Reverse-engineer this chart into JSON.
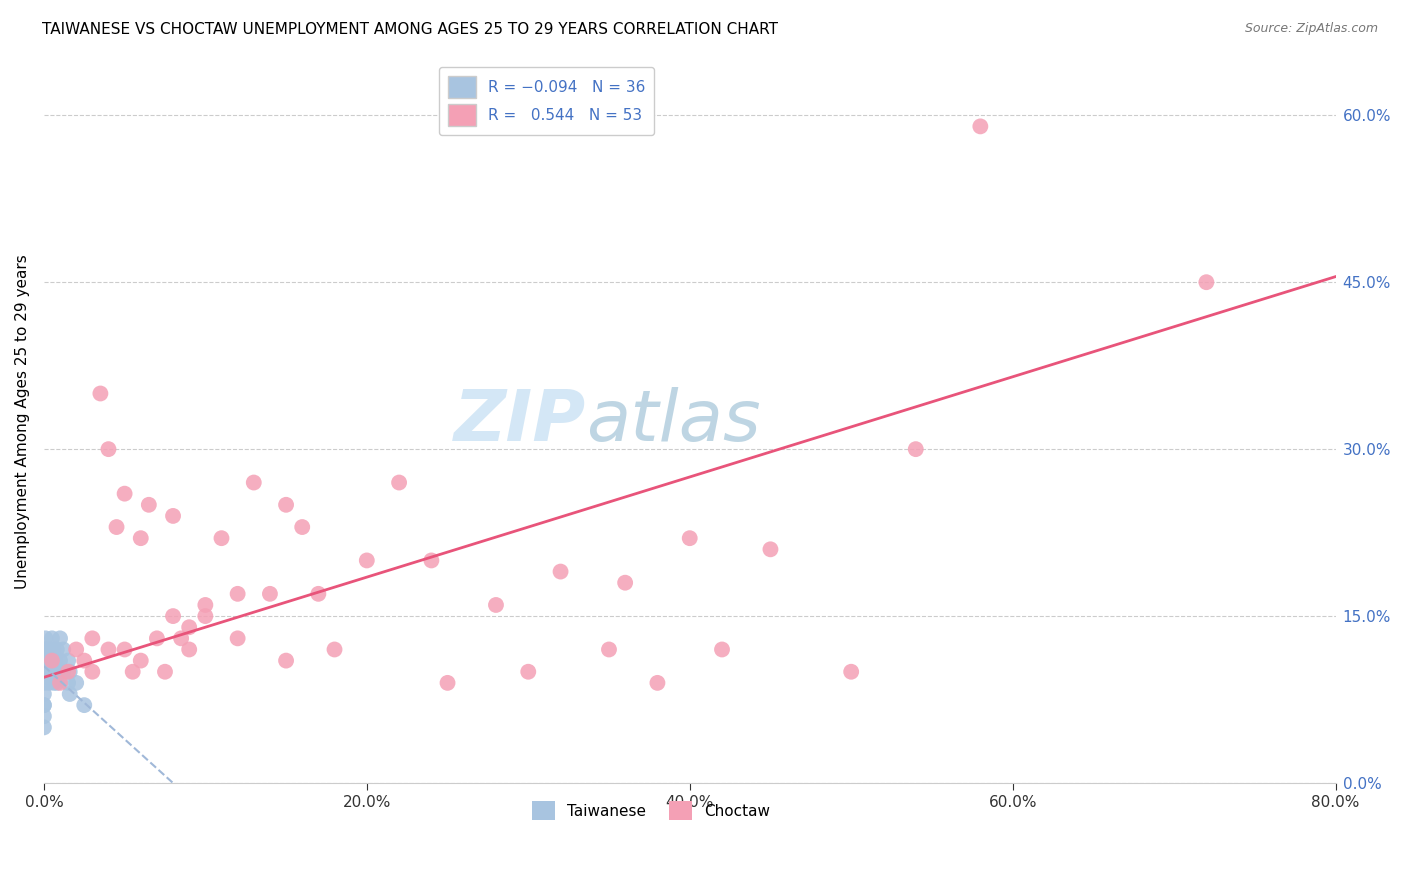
{
  "title": "TAIWANESE VS CHOCTAW UNEMPLOYMENT AMONG AGES 25 TO 29 YEARS CORRELATION CHART",
  "source": "Source: ZipAtlas.com",
  "ylabel": "Unemployment Among Ages 25 to 29 years",
  "watermark_zip": "ZIP",
  "watermark_atlas": "atlas",
  "xlim": [
    0,
    0.8
  ],
  "ylim": [
    0,
    0.65
  ],
  "x_ticks": [
    0.0,
    0.2,
    0.4,
    0.6,
    0.8
  ],
  "x_tick_labels": [
    "0.0%",
    "20.0%",
    "40.0%",
    "60.0%",
    "80.0%"
  ],
  "y_ticks_right": [
    0.0,
    0.15,
    0.3,
    0.45,
    0.6
  ],
  "y_tick_labels_right": [
    "0.0%",
    "15.0%",
    "30.0%",
    "45.0%",
    "60.0%"
  ],
  "taiwanese_color": "#a8c4e0",
  "choctaw_color": "#f4a0b5",
  "taiwanese_line_color": "#a0b8d8",
  "choctaw_line_color": "#e8547a",
  "legend_taiwanese_label": "Taiwanese",
  "legend_choctaw_label": "Choctaw",
  "taiwanese_R": -0.094,
  "taiwanese_N": 36,
  "choctaw_R": 0.544,
  "choctaw_N": 53,
  "grid_color": "#cccccc",
  "background_color": "#ffffff",
  "taiwanese_x": [
    0.0,
    0.0,
    0.0,
    0.0,
    0.0,
    0.0,
    0.0,
    0.0,
    0.001,
    0.001,
    0.002,
    0.002,
    0.003,
    0.003,
    0.003,
    0.004,
    0.004,
    0.005,
    0.005,
    0.006,
    0.006,
    0.007,
    0.007,
    0.008,
    0.008,
    0.01,
    0.01,
    0.01,
    0.012,
    0.012,
    0.015,
    0.015,
    0.016,
    0.016,
    0.02,
    0.025
  ],
  "taiwanese_y": [
    0.12,
    0.1,
    0.09,
    0.08,
    0.07,
    0.07,
    0.06,
    0.05,
    0.13,
    0.12,
    0.12,
    0.1,
    0.11,
    0.1,
    0.09,
    0.12,
    0.11,
    0.13,
    0.1,
    0.12,
    0.09,
    0.11,
    0.1,
    0.12,
    0.09,
    0.13,
    0.11,
    0.1,
    0.12,
    0.1,
    0.11,
    0.09,
    0.1,
    0.08,
    0.09,
    0.07
  ],
  "choctaw_x": [
    0.005,
    0.01,
    0.015,
    0.02,
    0.025,
    0.03,
    0.03,
    0.035,
    0.04,
    0.04,
    0.045,
    0.05,
    0.05,
    0.055,
    0.06,
    0.06,
    0.065,
    0.07,
    0.075,
    0.08,
    0.08,
    0.085,
    0.09,
    0.09,
    0.1,
    0.1,
    0.11,
    0.12,
    0.12,
    0.13,
    0.14,
    0.15,
    0.15,
    0.16,
    0.17,
    0.18,
    0.2,
    0.22,
    0.24,
    0.25,
    0.28,
    0.3,
    0.32,
    0.35,
    0.36,
    0.38,
    0.4,
    0.42,
    0.45,
    0.5,
    0.54,
    0.58,
    0.72
  ],
  "choctaw_y": [
    0.11,
    0.09,
    0.1,
    0.12,
    0.11,
    0.13,
    0.1,
    0.35,
    0.12,
    0.3,
    0.23,
    0.12,
    0.26,
    0.1,
    0.11,
    0.22,
    0.25,
    0.13,
    0.1,
    0.15,
    0.24,
    0.13,
    0.14,
    0.12,
    0.16,
    0.15,
    0.22,
    0.17,
    0.13,
    0.27,
    0.17,
    0.25,
    0.11,
    0.23,
    0.17,
    0.12,
    0.2,
    0.27,
    0.2,
    0.09,
    0.16,
    0.1,
    0.19,
    0.12,
    0.18,
    0.09,
    0.22,
    0.12,
    0.21,
    0.1,
    0.3,
    0.59,
    0.45
  ]
}
